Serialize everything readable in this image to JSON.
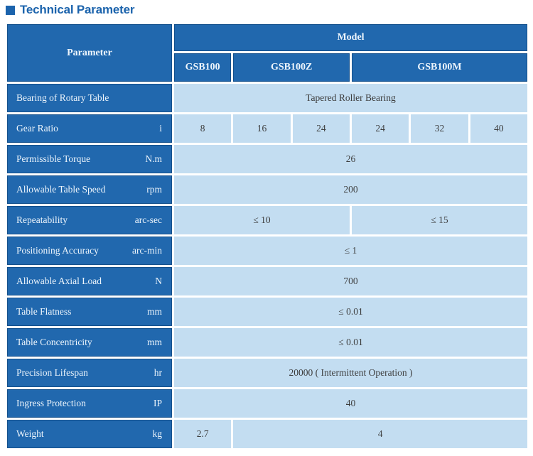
{
  "title": "Technical Parameter",
  "colors": {
    "accent": "#1b63ac",
    "header_bg": "#2168ae",
    "header_border": "#14508c",
    "value_bg": "#c3ddf1",
    "value_text": "#3d3d3d",
    "header_text": "#edf5fc"
  },
  "table": {
    "param_header": "Parameter",
    "model_header": "Model",
    "model_columns": [
      {
        "label": "GSB100",
        "span": 1
      },
      {
        "label": "GSB100Z",
        "span": 2
      },
      {
        "label": "GSB100M",
        "span": 3
      }
    ],
    "rows": [
      {
        "param": "Bearing of Rotary Table",
        "unit": "",
        "values": [
          {
            "text": "Tapered Roller Bearing",
            "span": 6
          }
        ]
      },
      {
        "param": "Gear Ratio",
        "unit": "i",
        "values": [
          {
            "text": "8",
            "span": 1
          },
          {
            "text": "16",
            "span": 1
          },
          {
            "text": "24",
            "span": 1
          },
          {
            "text": "24",
            "span": 1
          },
          {
            "text": "32",
            "span": 1
          },
          {
            "text": "40",
            "span": 1
          }
        ]
      },
      {
        "param": "Permissible Torque",
        "unit": "N.m",
        "values": [
          {
            "text": "26",
            "span": 6
          }
        ]
      },
      {
        "param": "Allowable Table Speed",
        "unit": "rpm",
        "values": [
          {
            "text": "200",
            "span": 6
          }
        ]
      },
      {
        "param": "Repeatability",
        "unit": "arc-sec",
        "values": [
          {
            "text": "≤ 10",
            "span": 3
          },
          {
            "text": "≤ 15",
            "span": 3
          }
        ]
      },
      {
        "param": "Positioning Accuracy",
        "unit": "arc-min",
        "values": [
          {
            "text": "≤ 1",
            "span": 6
          }
        ]
      },
      {
        "param": "Allowable Axial Load",
        "unit": "N",
        "values": [
          {
            "text": "700",
            "span": 6
          }
        ]
      },
      {
        "param": "Table Flatness",
        "unit": "mm",
        "values": [
          {
            "text": "≤ 0.01",
            "span": 6
          }
        ]
      },
      {
        "param": "Table Concentricity",
        "unit": "mm",
        "values": [
          {
            "text": "≤ 0.01",
            "span": 6
          }
        ]
      },
      {
        "param": "Precision Lifespan",
        "unit": "hr",
        "values": [
          {
            "text": "20000 ( Intermittent Operation )",
            "span": 6
          }
        ]
      },
      {
        "param": "Ingress Protection",
        "unit": "IP",
        "values": [
          {
            "text": "40",
            "span": 6
          }
        ]
      },
      {
        "param": "Weight",
        "unit": "kg",
        "values": [
          {
            "text": "2.7",
            "span": 1
          },
          {
            "text": "4",
            "span": 5
          }
        ]
      }
    ]
  }
}
